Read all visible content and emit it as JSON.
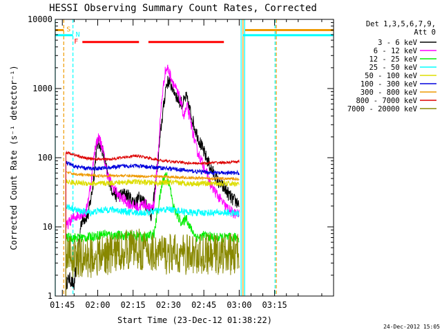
{
  "chart_data": {
    "type": "line",
    "title": "HESSI Observing Summary Count Rates, Corrected",
    "xlabel": "Start Time (23-Dec-12 01:38:22)",
    "ylabel": "Corrected Count Rate (s⁻¹ detector⁻¹)",
    "y_scale": "log",
    "ylim": [
      1,
      10000
    ],
    "xlim_minutes": [
      -18,
      100
    ],
    "x_ticks": [
      {
        "label": "01:45",
        "m": -15
      },
      {
        "label": "02:00",
        "m": 0
      },
      {
        "label": "02:15",
        "m": 15
      },
      {
        "label": "02:30",
        "m": 30
      },
      {
        "label": "02:45",
        "m": 45
      },
      {
        "label": "03:00",
        "m": 60
      },
      {
        "label": "03:15",
        "m": 75
      }
    ],
    "y_ticks": [
      {
        "label": "1",
        "v": 1
      },
      {
        "label": "10",
        "v": 10
      },
      {
        "label": "100",
        "v": 100
      },
      {
        "label": "1000",
        "v": 1000
      },
      {
        "label": "10000",
        "v": 10000
      }
    ],
    "legend_header": [
      "Det 1,3,5,6,7,9,",
      "Att 0"
    ],
    "legend_position": "outside-right",
    "series": [
      {
        "name": "3 - 6 keV",
        "color": "#000000",
        "noise": 0.1,
        "points": [
          [
            -13.5,
            1.5
          ],
          [
            -12,
            1.8
          ],
          [
            -10,
            1.4
          ],
          [
            -7,
            12
          ],
          [
            -4,
            15
          ],
          [
            -2,
            40
          ],
          [
            -0.5,
            140
          ],
          [
            0.5,
            170
          ],
          [
            2,
            130
          ],
          [
            4,
            60
          ],
          [
            6,
            35
          ],
          [
            8,
            28
          ],
          [
            12,
            30
          ],
          [
            16,
            22
          ],
          [
            18,
            28
          ],
          [
            21,
            20
          ],
          [
            23,
            14
          ],
          [
            25,
            60
          ],
          [
            27,
            300
          ],
          [
            29,
            1100
          ],
          [
            30,
            1300
          ],
          [
            32,
            1000
          ],
          [
            34,
            700
          ],
          [
            36,
            600
          ],
          [
            37.5,
            750
          ],
          [
            39,
            500
          ],
          [
            41,
            280
          ],
          [
            43,
            180
          ],
          [
            45,
            120
          ],
          [
            48,
            70
          ],
          [
            51,
            45
          ],
          [
            54,
            35
          ],
          [
            57,
            25
          ],
          [
            60,
            22
          ]
        ]
      },
      {
        "name": "6 - 12 keV",
        "color": "#ff00ff",
        "noise": 0.08,
        "points": [
          [
            -13.5,
            10
          ],
          [
            -11,
            13
          ],
          [
            -8,
            15
          ],
          [
            -5,
            16
          ],
          [
            -3,
            40
          ],
          [
            -1,
            150
          ],
          [
            0.5,
            200
          ],
          [
            2,
            140
          ],
          [
            4,
            60
          ],
          [
            6,
            40
          ],
          [
            9,
            28
          ],
          [
            13,
            22
          ],
          [
            17,
            19
          ],
          [
            20,
            22
          ],
          [
            22,
            18
          ],
          [
            24,
            22
          ],
          [
            25.5,
            100
          ],
          [
            27,
            600
          ],
          [
            28.5,
            1700
          ],
          [
            29.5,
            2000
          ],
          [
            31,
            1500
          ],
          [
            33,
            1000
          ],
          [
            35,
            700
          ],
          [
            36.5,
            400
          ],
          [
            38,
            550
          ],
          [
            40,
            260
          ],
          [
            42,
            130
          ],
          [
            45,
            75
          ],
          [
            48,
            40
          ],
          [
            51,
            28
          ],
          [
            54,
            20
          ],
          [
            57,
            16
          ],
          [
            60,
            15
          ]
        ]
      },
      {
        "name": "12 - 25 keV",
        "color": "#00ee00",
        "noise": 0.07,
        "points": [
          [
            -13.5,
            7
          ],
          [
            -10,
            7
          ],
          [
            -5,
            7
          ],
          [
            0,
            7.5
          ],
          [
            3,
            8
          ],
          [
            6,
            7.5
          ],
          [
            10,
            7.5
          ],
          [
            15,
            7.5
          ],
          [
            20,
            7
          ],
          [
            24,
            8
          ],
          [
            25.5,
            18
          ],
          [
            27.5,
            45
          ],
          [
            29,
            60
          ],
          [
            30.5,
            40
          ],
          [
            32,
            20
          ],
          [
            34,
            14
          ],
          [
            36,
            11
          ],
          [
            37.5,
            14
          ],
          [
            39,
            10
          ],
          [
            42,
            7
          ],
          [
            45,
            7.5
          ],
          [
            50,
            7
          ],
          [
            55,
            7
          ],
          [
            60,
            7
          ]
        ]
      },
      {
        "name": "25 - 50 keV",
        "color": "#00ffff",
        "noise": 0.05,
        "points": [
          [
            -13.5,
            20
          ],
          [
            -8,
            17
          ],
          [
            -3,
            16
          ],
          [
            0,
            17
          ],
          [
            5,
            18
          ],
          [
            10,
            17
          ],
          [
            15,
            16
          ],
          [
            20,
            16
          ],
          [
            25,
            17
          ],
          [
            30,
            18
          ],
          [
            35,
            17
          ],
          [
            40,
            16
          ],
          [
            45,
            16
          ],
          [
            50,
            16
          ],
          [
            55,
            16
          ],
          [
            60,
            15.5
          ]
        ]
      },
      {
        "name": "50 - 100 keV",
        "color": "#dddd00",
        "noise": 0.04,
        "points": [
          [
            -13.5,
            45
          ],
          [
            -8,
            43
          ],
          [
            0,
            42
          ],
          [
            5,
            43
          ],
          [
            10,
            44
          ],
          [
            15,
            45
          ],
          [
            20,
            44
          ],
          [
            25,
            43
          ],
          [
            30,
            44
          ],
          [
            35,
            43
          ],
          [
            40,
            42
          ],
          [
            45,
            43
          ],
          [
            50,
            42
          ],
          [
            55,
            42
          ],
          [
            60,
            42
          ]
        ]
      },
      {
        "name": "100 - 300 keV",
        "color": "#0000dd",
        "noise": 0.03,
        "points": [
          [
            -13.5,
            85
          ],
          [
            -10,
            75
          ],
          [
            -5,
            70
          ],
          [
            0,
            70
          ],
          [
            5,
            72
          ],
          [
            10,
            75
          ],
          [
            15,
            77
          ],
          [
            20,
            74
          ],
          [
            25,
            72
          ],
          [
            30,
            70
          ],
          [
            35,
            67
          ],
          [
            40,
            64
          ],
          [
            45,
            62
          ],
          [
            50,
            60
          ],
          [
            55,
            60
          ],
          [
            60,
            60
          ]
        ]
      },
      {
        "name": "300 - 800 keV",
        "color": "#ee9900",
        "noise": 0.02,
        "points": [
          [
            -13.5,
            62
          ],
          [
            -10,
            58
          ],
          [
            -5,
            56
          ],
          [
            0,
            55
          ],
          [
            10,
            55
          ],
          [
            20,
            54
          ],
          [
            30,
            53
          ],
          [
            40,
            51
          ],
          [
            50,
            50
          ],
          [
            60,
            49
          ]
        ]
      },
      {
        "name": "800 - 7000 keV",
        "color": "#dd0000",
        "noise": 0.02,
        "points": [
          [
            -13.5,
            120
          ],
          [
            -10,
            110
          ],
          [
            -5,
            98
          ],
          [
            0,
            95
          ],
          [
            5,
            95
          ],
          [
            10,
            100
          ],
          [
            15,
            106
          ],
          [
            18,
            105
          ],
          [
            22,
            98
          ],
          [
            26,
            92
          ],
          [
            30,
            88
          ],
          [
            35,
            86
          ],
          [
            40,
            83
          ],
          [
            45,
            83
          ],
          [
            50,
            85
          ],
          [
            55,
            85
          ],
          [
            60,
            88
          ]
        ]
      },
      {
        "name": "7000 - 20000 keV",
        "color": "#888800",
        "noise": 0.3,
        "points": [
          [
            -13.5,
            4
          ],
          [
            -10,
            3.5
          ],
          [
            -5,
            3.5
          ],
          [
            0,
            3.8
          ],
          [
            5,
            4
          ],
          [
            10,
            4.5
          ],
          [
            15,
            5
          ],
          [
            20,
            4.5
          ],
          [
            25,
            4.2
          ],
          [
            30,
            4
          ],
          [
            35,
            4
          ],
          [
            40,
            4
          ],
          [
            45,
            4
          ],
          [
            50,
            4
          ],
          [
            55,
            4
          ],
          [
            60,
            4
          ]
        ]
      }
    ],
    "annotations": [
      {
        "label": "S",
        "color": "#ee9900",
        "start_m": -18,
        "end_m": -14.4,
        "level": 7000
      },
      {
        "label": "N",
        "color": "#00ffff",
        "start_m": -18,
        "end_m": -10.5,
        "level": 5900
      },
      {
        "label": "F",
        "color": "#ff0000",
        "start_m": -6.5,
        "end_m": 17.5,
        "level": 4700
      },
      {
        "label": "",
        "color": "#ff0000",
        "start_m": 21.5,
        "end_m": 53.5,
        "level": 4700
      },
      {
        "label": "",
        "color": "#ee9900",
        "start_m": 62.5,
        "end_m": 100,
        "level": 7000
      },
      {
        "label": "",
        "color": "#00ffff",
        "start_m": 61.5,
        "end_m": 100,
        "level": 5900
      }
    ],
    "vertical_markers": [
      {
        "m": -18,
        "color": "#00ffff",
        "style": "solid"
      },
      {
        "m": -14.4,
        "color": "#ee9900",
        "style": "dashed"
      },
      {
        "m": -10.5,
        "color": "#00ffff",
        "style": "dashed"
      },
      {
        "m": 60.8,
        "color": "#00ffff",
        "style": "solid"
      },
      {
        "m": 61.6,
        "color": "#ee9900",
        "style": "solid"
      },
      {
        "m": 62.3,
        "color": "#00ffff",
        "style": "solid"
      },
      {
        "m": 75.2,
        "color": "#00ffff",
        "style": "dashed"
      },
      {
        "m": 75.7,
        "color": "#ee9900",
        "style": "dashed"
      }
    ]
  },
  "footer": {
    "timestamp": "24-Dec-2012 15:05"
  }
}
